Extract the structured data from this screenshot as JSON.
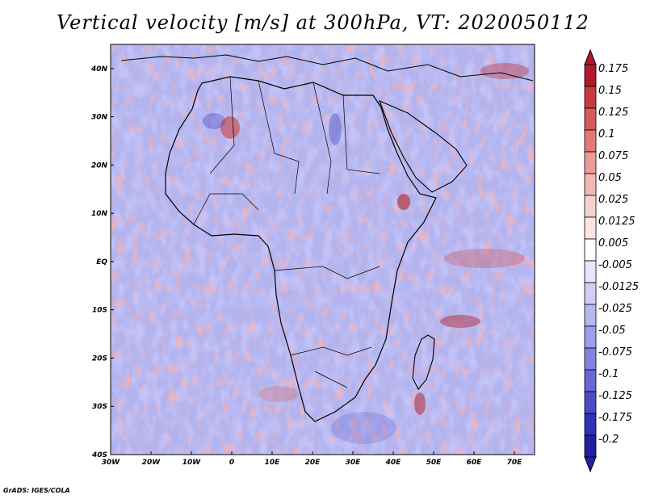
{
  "title": "Vertical velocity [m/s] at 300hPa, VT: 2020050112",
  "credit": "GrADS: IGES/COLA",
  "map": {
    "lon_range": [
      -30,
      75
    ],
    "lat_range": [
      -40,
      45
    ],
    "lat_ticks": [
      "40N",
      "30N",
      "20N",
      "10N",
      "EQ",
      "10S",
      "20S",
      "30S",
      "40S"
    ],
    "lon_ticks": [
      "30W",
      "20W",
      "10W",
      "0",
      "10E",
      "20E",
      "30E",
      "40E",
      "50E",
      "60E",
      "70E"
    ]
  },
  "colorbar": {
    "labels": [
      "0.175",
      "0.15",
      "0.125",
      "0.1",
      "0.075",
      "0.05",
      "0.025",
      "0.0125",
      "0.005",
      "-0.005",
      "-0.0125",
      "-0.025",
      "-0.05",
      "-0.075",
      "-0.1",
      "-0.125",
      "-0.175",
      "-0.2"
    ],
    "colors": [
      "#b2182b",
      "#c8393f",
      "#d75a5a",
      "#e27a78",
      "#eb9a96",
      "#f2b7b3",
      "#f7d1ce",
      "#fbe6e4",
      "#ffffff",
      "#e6e6fb",
      "#cfcff5",
      "#b7b7ef",
      "#9d9de8",
      "#8282df",
      "#6767d5",
      "#4b4bc9",
      "#3030b8",
      "#2020a0"
    ]
  }
}
